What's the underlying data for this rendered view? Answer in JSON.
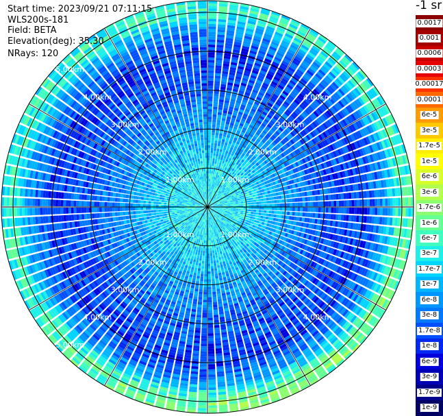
{
  "info": {
    "start_time": "Start time: 2023/09/21 07:11:15",
    "instrument": "WLS200s-181",
    "field": "Field: BETA",
    "elevation": "Elevation(deg): 35.30",
    "nrays": "NRays: 120"
  },
  "chart_data": {
    "type": "ppi-polar",
    "field": "BETA",
    "unit": "-1 sr",
    "elevation_deg": 35.3,
    "nrays": 120,
    "range_rings_km": [
      1.0,
      2.0,
      3.0,
      4.0,
      5.0
    ],
    "max_range_km": 5.3,
    "ring_label_text": [
      "1.00km",
      "2.00km",
      "3.00km",
      "4.00km",
      "5.00km"
    ],
    "spoke_angles_deg": [
      0,
      30,
      60,
      90,
      120,
      150,
      180,
      210,
      240,
      270,
      300,
      330
    ],
    "range_profile_log10": [
      {
        "r_km": 0.0,
        "log10_beta": -6.6
      },
      {
        "r_km": 1.0,
        "log10_beta": -6.7
      },
      {
        "r_km": 2.0,
        "log10_beta": -7.2
      },
      {
        "r_km": 3.0,
        "log10_beta": -7.7
      },
      {
        "r_km": 4.0,
        "log10_beta": -7.9
      },
      {
        "r_km": 4.5,
        "log10_beta": -7.4
      },
      {
        "r_km": 5.0,
        "log10_beta": -6.3
      },
      {
        "r_km": 5.3,
        "log10_beta": -6.5
      }
    ],
    "colorbar": {
      "labels": [
        "0.0017",
        "0.001",
        "0.0006",
        "0.0003",
        "0.00017",
        "0.0001",
        "6e-5",
        "3e-5",
        "1.7e-5",
        "1e-5",
        "6e-6",
        "3e-6",
        "1.7e-6",
        "1e-6",
        "6e-7",
        "3e-7",
        "1.7e-7",
        "1e-7",
        "6e-8",
        "3e-8",
        "1.7e-8",
        "1e-8",
        "6e-9",
        "3e-9",
        "1.7e-9",
        "1e-9"
      ],
      "colors": [
        "#8b0000",
        "#a50000",
        "#c80000",
        "#e60000",
        "#ff3300",
        "#ff6a00",
        "#ff9a00",
        "#ffc800",
        "#ffee00",
        "#ffff00",
        "#d8ff2a",
        "#b2ff4c",
        "#8cff70",
        "#66ff94",
        "#40ffbe",
        "#1ef0e8",
        "#00d4ff",
        "#00b4ff",
        "#0096ff",
        "#0078ff",
        "#0050ff",
        "#0028f0",
        "#0000dc",
        "#0000b4",
        "#00008c",
        "#000064"
      ]
    },
    "colors": {
      "ring_line": "#000000",
      "ray_gap": "#ffffff",
      "ring_label": "#ffffff"
    }
  }
}
